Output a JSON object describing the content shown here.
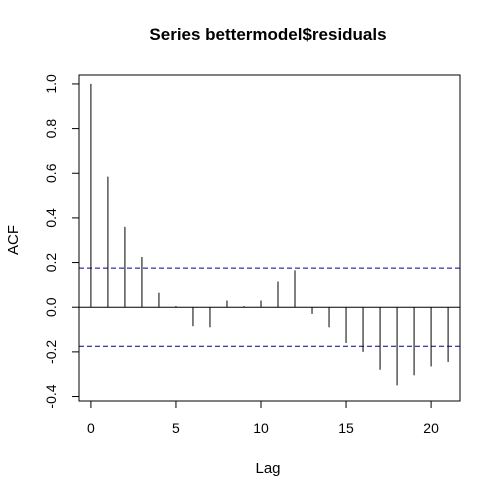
{
  "chart_data": {
    "type": "bar",
    "title": "Series  bettermodel$residuals",
    "xlabel": "Lag",
    "ylabel": "ACF",
    "x": [
      0,
      1,
      2,
      3,
      4,
      5,
      6,
      7,
      8,
      9,
      10,
      11,
      12,
      13,
      14,
      15,
      16,
      17,
      18,
      19,
      20,
      21
    ],
    "values": [
      1.0,
      0.585,
      0.36,
      0.225,
      0.065,
      0.005,
      -0.085,
      -0.09,
      0.03,
      0.005,
      0.03,
      0.115,
      0.165,
      -0.03,
      -0.09,
      -0.16,
      -0.2,
      -0.28,
      -0.35,
      -0.305,
      -0.265,
      -0.245
    ],
    "confidence_bounds": [
      0.175,
      -0.175
    ],
    "xlim": [
      -0.7,
      21.7
    ],
    "ylim": [
      -0.42,
      1.04
    ],
    "x_ticks": [
      0,
      5,
      10,
      15,
      20
    ],
    "x_tick_labels": [
      "0",
      "5",
      "10",
      "15",
      "20"
    ],
    "y_ticks": [
      -0.4,
      -0.2,
      0.0,
      0.2,
      0.4,
      0.6,
      0.8,
      1.0
    ],
    "y_tick_labels": [
      "-0.4",
      "-0.2",
      "0.0",
      "0.2",
      "0.4",
      "0.6",
      "0.8",
      "1.0"
    ],
    "grid": false,
    "bound_color": "#00008b",
    "line_color": "#000000"
  }
}
